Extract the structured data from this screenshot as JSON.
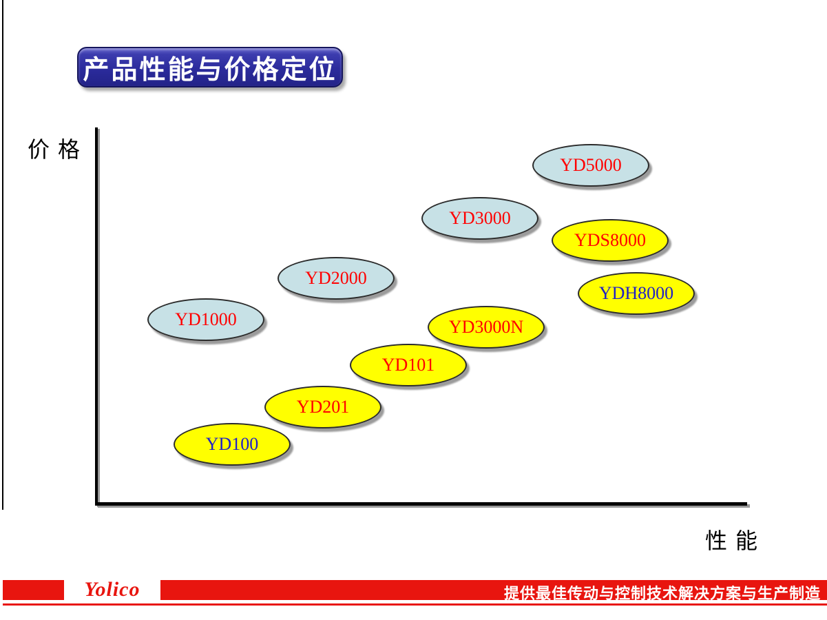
{
  "slide": {
    "title_button": {
      "label": "产品性能与价格定位"
    },
    "footer": {
      "logo_text": "Yolico",
      "slogan": "提供最佳传动与控制技术解决方案与生产制造",
      "bar_color": "#e8150f"
    }
  },
  "chart_data": {
    "type": "scatter",
    "title": "产品性能与价格定位",
    "xlabel": "性能",
    "ylabel": "价格",
    "x_range": [
      0,
      100
    ],
    "y_range": [
      0,
      100
    ],
    "grid": false,
    "legend": "none",
    "axis_style": "qualitative axes, no tick marks or numeric labels",
    "series": [
      {
        "name": "light-blue-products",
        "fill": "#c7e1e6",
        "points": [
          {
            "label": "YD1000",
            "x": 17,
            "y": 49,
            "label_color": "#ff0000"
          },
          {
            "label": "YD2000",
            "x": 37,
            "y": 60,
            "label_color": "#ff0000"
          },
          {
            "label": "YD3000",
            "x": 59,
            "y": 76,
            "label_color": "#ff0000"
          },
          {
            "label": "YD5000",
            "x": 76,
            "y": 90,
            "label_color": "#ff0000"
          }
        ]
      },
      {
        "name": "yellow-products",
        "fill": "#ffff00",
        "points": [
          {
            "label": "YD100",
            "x": 21,
            "y": 16,
            "label_color": "#1f1fc8"
          },
          {
            "label": "YD201",
            "x": 35,
            "y": 26,
            "label_color": "#ff0000"
          },
          {
            "label": "YD101",
            "x": 48,
            "y": 37,
            "label_color": "#ff0000"
          },
          {
            "label": "YD3000N",
            "x": 60,
            "y": 47,
            "label_color": "#ff0000"
          },
          {
            "label": "YDS8000",
            "x": 79,
            "y": 70,
            "label_color": "#ff0000"
          },
          {
            "label": "YDH8000",
            "x": 83,
            "y": 56,
            "label_color": "#1f1fc8"
          }
        ]
      }
    ]
  },
  "colors": {
    "title_button_bg": "#2b2b9c",
    "bubble_blue": "#c7e1e6",
    "bubble_yellow": "#ffff00",
    "label_red": "#ff0000",
    "label_blue": "#1f1fc8",
    "footer_red": "#e8150f",
    "axis_black": "#000000",
    "shadow_gray": "#9b9b9b"
  }
}
